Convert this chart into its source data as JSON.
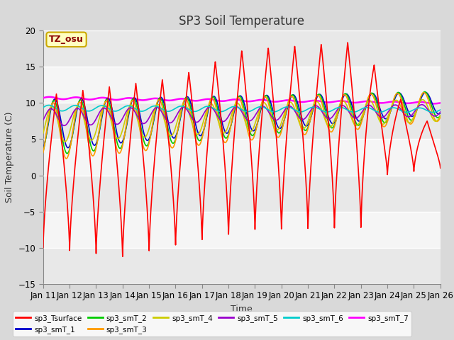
{
  "title": "SP3 Soil Temperature",
  "ylabel": "Soil Temperature (C)",
  "xlabel": "Time",
  "ylim": [
    -15,
    20
  ],
  "yticks": [
    -15,
    -10,
    -5,
    0,
    5,
    10,
    15,
    20
  ],
  "xtick_labels": [
    "Jan 11",
    "Jan 12",
    "Jan 13",
    "Jan 14",
    "Jan 15",
    "Jan 16",
    "Jan 17",
    "Jan 18",
    "Jan 19",
    "Jan 20",
    "Jan 21",
    "Jan 22",
    "Jan 23",
    "Jan 24",
    "Jan 25",
    "Jan 26"
  ],
  "annotation_text": "TZ_osu",
  "series_colors": {
    "sp3_Tsurface": "#ff0000",
    "sp3_smT_1": "#0000cc",
    "sp3_smT_2": "#00cc00",
    "sp3_smT_3": "#ff9900",
    "sp3_smT_4": "#cccc00",
    "sp3_smT_5": "#9900cc",
    "sp3_smT_6": "#00cccc",
    "sp3_smT_7": "#ff00ff"
  },
  "background_color": "#d9d9d9",
  "plot_bg_color": "#ffffff",
  "title_fontsize": 12,
  "axis_fontsize": 9,
  "tick_fontsize": 8.5
}
